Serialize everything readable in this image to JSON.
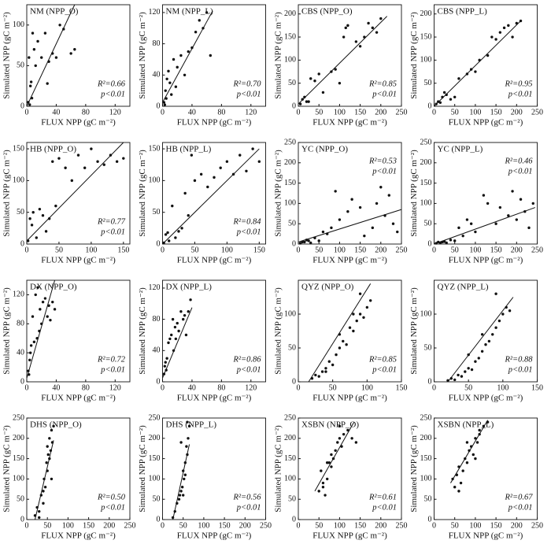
{
  "chart_data": [
    {
      "type": "scatter",
      "title": "NM (NPP_O)",
      "x_label": "FLUX NPP (gC m⁻²)",
      "y_label": "Simulated NPP (gC m⁻²)",
      "annotations": [
        "R²=0.66",
        "p<0.01"
      ],
      "annotation_corner": "lower right",
      "x": [
        2,
        5,
        8,
        3,
        10,
        6,
        12,
        15,
        20,
        25,
        28,
        30,
        35,
        40,
        45,
        50,
        60,
        65,
        4,
        7
      ],
      "y": [
        5,
        25,
        90,
        60,
        70,
        30,
        50,
        80,
        60,
        90,
        28,
        55,
        65,
        60,
        100,
        95,
        65,
        70,
        2,
        10
      ],
      "fit": {
        "x": [
          0,
          65
        ],
        "y": [
          0,
          125
        ]
      },
      "xlim": [
        0,
        140
      ],
      "xticks": [
        0,
        40,
        80,
        120
      ],
      "ylim": [
        0,
        125
      ],
      "yticks": [
        0,
        50,
        100
      ]
    },
    {
      "type": "scatter",
      "title": "NM (NPP_L)",
      "x_label": "FLUX NPP (gC m⁻²)",
      "y_label": "Simulated NPP (gC m⁻²)",
      "annotations": [
        "R²=0.70",
        "p<0.01"
      ],
      "annotation_corner": "lower right",
      "x": [
        2,
        4,
        6,
        8,
        10,
        12,
        15,
        20,
        25,
        30,
        35,
        40,
        45,
        50,
        55,
        60,
        65,
        5,
        3,
        18
      ],
      "y": [
        5,
        20,
        35,
        45,
        30,
        15,
        60,
        50,
        65,
        40,
        70,
        75,
        95,
        110,
        100,
        120,
        65,
        10,
        2,
        25
      ],
      "fit": {
        "x": [
          0,
          68
        ],
        "y": [
          5,
          122
        ]
      },
      "xlim": [
        0,
        140
      ],
      "xticks": [
        0,
        40,
        80,
        120
      ],
      "ylim": [
        0,
        130
      ],
      "yticks": [
        0,
        40,
        80,
        120
      ]
    },
    {
      "type": "scatter",
      "title": "CBS (NPP_O)",
      "x_label": "FLUX NPP (gC m⁻²)",
      "y_label": "Simulated NPP (gC m⁻²)",
      "annotations": [
        "R²=0.85",
        "p<0.01"
      ],
      "annotation_corner": "lower right",
      "x": [
        5,
        10,
        20,
        30,
        40,
        50,
        60,
        80,
        90,
        100,
        110,
        115,
        120,
        140,
        150,
        160,
        170,
        180,
        190,
        200,
        15,
        25
      ],
      "y": [
        5,
        15,
        10,
        60,
        55,
        70,
        30,
        75,
        80,
        50,
        150,
        170,
        175,
        140,
        130,
        150,
        180,
        170,
        160,
        190,
        20,
        10
      ],
      "fit": {
        "x": [
          0,
          215
        ],
        "y": [
          5,
          195
        ]
      },
      "xlim": [
        0,
        250
      ],
      "xticks": [
        0,
        50,
        100,
        150,
        200,
        250
      ],
      "ylim": [
        0,
        220
      ],
      "yticks": [
        0,
        50,
        100,
        150,
        200
      ]
    },
    {
      "type": "scatter",
      "title": "CBS (NPP_L)",
      "x_label": "FLUX NPP (gC m⁻²)",
      "y_label": "Simulated NPP (gC m⁻²)",
      "annotations": [
        "R²=0.95",
        "p<0.01"
      ],
      "annotation_corner": "lower right",
      "x": [
        5,
        10,
        20,
        30,
        40,
        50,
        60,
        80,
        90,
        100,
        110,
        130,
        140,
        150,
        160,
        170,
        180,
        190,
        200,
        210,
        15,
        25
      ],
      "y": [
        5,
        10,
        20,
        25,
        15,
        20,
        60,
        70,
        80,
        75,
        100,
        110,
        150,
        145,
        160,
        170,
        175,
        150,
        180,
        185,
        8,
        30
      ],
      "fit": {
        "x": [
          0,
          210
        ],
        "y": [
          0,
          185
        ]
      },
      "xlim": [
        0,
        250
      ],
      "xticks": [
        0,
        50,
        100,
        150,
        200,
        250
      ],
      "ylim": [
        0,
        220
      ],
      "yticks": [
        0,
        50,
        100,
        150,
        200
      ]
    },
    {
      "type": "scatter",
      "title": "HB (NPP_O)",
      "x_label": "FLUX NPP (gC m⁻²)",
      "y_label": "Simulated NPP (gC m⁻²)",
      "annotations": [
        "R²=0.77",
        "p<0.01"
      ],
      "annotation_corner": "lower right",
      "x": [
        2,
        5,
        10,
        15,
        20,
        25,
        30,
        40,
        50,
        60,
        70,
        80,
        90,
        100,
        110,
        120,
        130,
        140,
        150,
        8,
        35,
        45
      ],
      "y": [
        5,
        40,
        50,
        10,
        55,
        45,
        20,
        130,
        135,
        120,
        100,
        140,
        120,
        150,
        130,
        125,
        140,
        130,
        135,
        30,
        40,
        60
      ],
      "fit": {
        "x": [
          0,
          150
        ],
        "y": [
          5,
          160
        ]
      },
      "xlim": [
        0,
        160
      ],
      "xticks": [
        0,
        50,
        100,
        150
      ],
      "ylim": [
        0,
        160
      ],
      "yticks": [
        0,
        50,
        100,
        150
      ]
    },
    {
      "type": "scatter",
      "title": "HB (NPP_L)",
      "x_label": "FLUX NPP (gC m⁻²)",
      "y_label": "Simulated NPP (gC m⁻²)",
      "annotations": [
        "R²=0.84",
        "p<0.01"
      ],
      "annotation_corner": "lower right",
      "x": [
        2,
        5,
        10,
        15,
        20,
        25,
        30,
        40,
        50,
        60,
        70,
        80,
        90,
        100,
        110,
        120,
        130,
        140,
        150,
        8,
        35,
        45
      ],
      "y": [
        2,
        15,
        5,
        60,
        10,
        20,
        25,
        45,
        100,
        110,
        90,
        105,
        120,
        130,
        110,
        140,
        115,
        150,
        130,
        18,
        80,
        140
      ],
      "fit": {
        "x": [
          0,
          150
        ],
        "y": [
          0,
          150
        ]
      },
      "xlim": [
        0,
        160
      ],
      "xticks": [
        0,
        50,
        100,
        150
      ],
      "ylim": [
        0,
        160
      ],
      "yticks": [
        0,
        50,
        100,
        150
      ]
    },
    {
      "type": "scatter",
      "title": "YC (NPP_O)",
      "x_label": "FLUX NPP (gC m⁻²)",
      "y_label": "Simulated NPP (gC m⁻²)",
      "annotations": [
        "R²=0.53",
        "p<0.01"
      ],
      "annotation_corner": "upper right",
      "x": [
        5,
        10,
        20,
        30,
        40,
        50,
        60,
        80,
        90,
        100,
        120,
        130,
        150,
        160,
        180,
        190,
        200,
        210,
        220,
        230,
        240,
        15,
        25,
        70
      ],
      "y": [
        2,
        5,
        10,
        3,
        15,
        8,
        30,
        40,
        130,
        60,
        80,
        110,
        90,
        20,
        40,
        100,
        140,
        70,
        120,
        50,
        30,
        5,
        8,
        25
      ],
      "fit": {
        "x": [
          0,
          250
        ],
        "y": [
          5,
          85
        ]
      },
      "xlim": [
        0,
        250
      ],
      "xticks": [
        0,
        50,
        100,
        150,
        200,
        250
      ],
      "ylim": [
        0,
        250
      ],
      "yticks": [
        0,
        50,
        100,
        150,
        200,
        250
      ]
    },
    {
      "type": "scatter",
      "title": "YC (NPP_L)",
      "x_label": "FLUX NPP (gC m⁻²)",
      "y_label": "Simulated NPP (gC m⁻²)",
      "annotations": [
        "R²=0.46",
        "p<0.01"
      ],
      "annotation_corner": "upper right",
      "x": [
        5,
        10,
        20,
        30,
        40,
        50,
        60,
        80,
        90,
        100,
        120,
        130,
        150,
        160,
        180,
        190,
        200,
        210,
        220,
        230,
        240,
        15,
        25,
        70
      ],
      "y": [
        2,
        5,
        5,
        3,
        10,
        8,
        40,
        60,
        50,
        30,
        120,
        100,
        50,
        90,
        70,
        130,
        60,
        110,
        80,
        40,
        100,
        3,
        6,
        20
      ],
      "fit": {
        "x": [
          0,
          245
        ],
        "y": [
          0,
          90
        ]
      },
      "xlim": [
        0,
        250
      ],
      "xticks": [
        0,
        50,
        100,
        150,
        200,
        250
      ],
      "ylim": [
        0,
        250
      ],
      "yticks": [
        0,
        50,
        100,
        150,
        200,
        250
      ]
    },
    {
      "type": "scatter",
      "title": "DX (NPP_O)",
      "x_label": "FLUX NPP (gC m⁻²)",
      "y_label": "Simulated NPP (gC m⁻²)",
      "annotations": [
        "R²=0.72",
        "p<0.01"
      ],
      "annotation_corner": "lower right",
      "x": [
        2,
        3,
        5,
        6,
        8,
        10,
        12,
        14,
        15,
        17,
        18,
        20,
        22,
        25,
        28,
        30,
        32,
        35,
        38,
        4
      ],
      "y": [
        15,
        10,
        40,
        50,
        90,
        55,
        120,
        60,
        130,
        70,
        100,
        80,
        110,
        115,
        90,
        105,
        85,
        110,
        100,
        30
      ],
      "fit": {
        "x": [
          0,
          38
        ],
        "y": [
          5,
          140
        ]
      },
      "xlim": [
        0,
        140
      ],
      "xticks": [
        0,
        40,
        80,
        120
      ],
      "ylim": [
        0,
        140
      ],
      "yticks": [
        0,
        40,
        80,
        120
      ]
    },
    {
      "type": "scatter",
      "title": "DX (NPP_L)",
      "x_label": "FLUX NPP (gC m⁻²)",
      "y_label": "Simulated NPP (gC m⁻²)",
      "annotations": [
        "R²=0.86",
        "p<0.01"
      ],
      "annotation_corner": "lower right",
      "x": [
        2,
        3,
        5,
        6,
        8,
        10,
        12,
        14,
        15,
        17,
        18,
        20,
        22,
        25,
        28,
        30,
        32,
        35,
        38,
        4
      ],
      "y": [
        10,
        20,
        15,
        30,
        50,
        55,
        60,
        80,
        40,
        70,
        55,
        75,
        65,
        90,
        80,
        85,
        60,
        90,
        105,
        25
      ],
      "fit": {
        "x": [
          0,
          40
        ],
        "y": [
          5,
          95
        ]
      },
      "xlim": [
        0,
        140
      ],
      "xticks": [
        0,
        40,
        80,
        120
      ],
      "ylim": [
        0,
        130
      ],
      "yticks": [
        0,
        40,
        80,
        120
      ]
    },
    {
      "type": "scatter",
      "title": "QYZ (NPP_O)",
      "x_label": "FLUX NPP (gC m⁻²)",
      "y_label": "Simulated NPP (gC m⁻²)",
      "annotations": [
        "R²=0.85",
        "p<0.01"
      ],
      "annotation_corner": "lower right",
      "x": [
        20,
        25,
        30,
        35,
        40,
        45,
        50,
        55,
        60,
        65,
        70,
        75,
        80,
        85,
        90,
        95,
        100,
        105,
        40,
        60,
        80,
        90
      ],
      "y": [
        5,
        10,
        8,
        15,
        20,
        30,
        25,
        40,
        50,
        60,
        55,
        80,
        75,
        90,
        100,
        95,
        110,
        120,
        15,
        70,
        100,
        130
      ],
      "fit": {
        "x": [
          15,
          105
        ],
        "y": [
          0,
          145
        ]
      },
      "xlim": [
        0,
        150
      ],
      "xticks": [
        0,
        50,
        100,
        150
      ],
      "ylim": [
        0,
        150
      ],
      "yticks": [
        0,
        50,
        100
      ]
    },
    {
      "type": "scatter",
      "title": "QYZ (NPP_L)",
      "x_label": "FLUX NPP (gC m⁻²)",
      "y_label": "Simulated NPP (gC m⁻²)",
      "annotations": [
        "R²=0.88",
        "p<0.01"
      ],
      "annotation_corner": "lower right",
      "x": [
        20,
        25,
        30,
        35,
        40,
        45,
        50,
        55,
        60,
        65,
        70,
        75,
        80,
        85,
        90,
        95,
        100,
        105,
        110,
        50,
        70,
        90
      ],
      "y": [
        2,
        5,
        3,
        10,
        8,
        15,
        20,
        18,
        30,
        35,
        45,
        55,
        60,
        70,
        80,
        90,
        100,
        110,
        105,
        40,
        70,
        130
      ],
      "fit": {
        "x": [
          20,
          115
        ],
        "y": [
          0,
          125
        ]
      },
      "xlim": [
        0,
        150
      ],
      "xticks": [
        0,
        50,
        100,
        150
      ],
      "ylim": [
        0,
        150
      ],
      "yticks": [
        0,
        50,
        100
      ]
    },
    {
      "type": "scatter",
      "title": "DHS (NPP_O)",
      "x_label": "FLUX NPP (gC m⁻²)",
      "y_label": "Simulated NPP (gC m⁻²)",
      "annotations": [
        "R²=0.50",
        "p<0.01"
      ],
      "annotation_corner": "lower right",
      "x": [
        20,
        25,
        30,
        35,
        40,
        42,
        45,
        48,
        50,
        52,
        55,
        58,
        60,
        62,
        65,
        30,
        40,
        50,
        55,
        60
      ],
      "y": [
        10,
        30,
        20,
        60,
        40,
        100,
        80,
        140,
        120,
        160,
        200,
        170,
        220,
        190,
        230,
        5,
        70,
        180,
        150,
        100
      ],
      "fit": {
        "x": [
          20,
          65
        ],
        "y": [
          0,
          195
        ]
      },
      "xlim": [
        0,
        250
      ],
      "xticks": [
        0,
        50,
        100,
        150,
        200,
        250
      ],
      "ylim": [
        0,
        250
      ],
      "yticks": [
        0,
        50,
        100,
        150,
        200,
        250
      ]
    },
    {
      "type": "scatter",
      "title": "DHS (NPP_L)",
      "x_label": "FLUX NPP (gC m⁻²)",
      "y_label": "Simulated NPP (gC m⁻²)",
      "annotations": [
        "R²=0.56",
        "p<0.01"
      ],
      "annotation_corner": "lower right",
      "x": [
        25,
        30,
        35,
        40,
        42,
        45,
        48,
        50,
        52,
        55,
        58,
        60,
        62,
        65,
        45,
        50,
        55,
        60
      ],
      "y": [
        5,
        20,
        40,
        50,
        60,
        70,
        80,
        120,
        100,
        140,
        180,
        160,
        200,
        230,
        190,
        60,
        110,
        240
      ],
      "fit": {
        "x": [
          25,
          65
        ],
        "y": [
          0,
          185
        ]
      },
      "xlim": [
        0,
        250
      ],
      "xticks": [
        0,
        50,
        100,
        150,
        200,
        250
      ],
      "ylim": [
        0,
        250
      ],
      "yticks": [
        0,
        50,
        100,
        150,
        200,
        250
      ]
    },
    {
      "type": "scatter",
      "title": "XSBN (NPP_O)",
      "x_label": "FLUX NPP (gC m⁻²)",
      "y_label": "Simulated NPP (gC m⁻²)",
      "annotations": [
        "R²=0.61",
        "p<0.01"
      ],
      "annotation_corner": "lower right",
      "x": [
        50,
        55,
        60,
        65,
        70,
        75,
        80,
        85,
        90,
        95,
        100,
        105,
        110,
        120,
        130,
        140,
        60,
        70,
        80,
        100
      ],
      "y": [
        70,
        120,
        90,
        60,
        100,
        140,
        130,
        150,
        170,
        190,
        200,
        180,
        210,
        220,
        200,
        190,
        80,
        140,
        160,
        230
      ],
      "fit": {
        "x": [
          40,
          135
        ],
        "y": [
          70,
          240
        ]
      },
      "xlim": [
        0,
        250
      ],
      "xticks": [
        0,
        50,
        100,
        150,
        200,
        250
      ],
      "ylim": [
        0,
        250
      ],
      "yticks": [
        0,
        50,
        100,
        150,
        200,
        250
      ]
    },
    {
      "type": "scatter",
      "title": "XSBN (NPP_L)",
      "x_label": "FLUX NPP (gC m⁻²)",
      "y_label": "Simulated NPP (gC m⁻²)",
      "annotations": [
        "R²=0.67",
        "p<0.01"
      ],
      "annotation_corner": "lower right",
      "x": [
        45,
        50,
        55,
        60,
        65,
        70,
        75,
        80,
        85,
        90,
        95,
        100,
        105,
        110,
        120,
        130,
        60,
        80,
        100,
        110
      ],
      "y": [
        100,
        80,
        110,
        70,
        90,
        120,
        150,
        140,
        170,
        180,
        160,
        200,
        190,
        220,
        230,
        240,
        130,
        190,
        150,
        210
      ],
      "fit": {
        "x": [
          40,
          130
        ],
        "y": [
          90,
          245
        ]
      },
      "xlim": [
        0,
        250
      ],
      "xticks": [
        0,
        50,
        100,
        150,
        200,
        250
      ],
      "ylim": [
        0,
        250
      ],
      "yticks": [
        0,
        50,
        100,
        150,
        200,
        250
      ]
    }
  ]
}
